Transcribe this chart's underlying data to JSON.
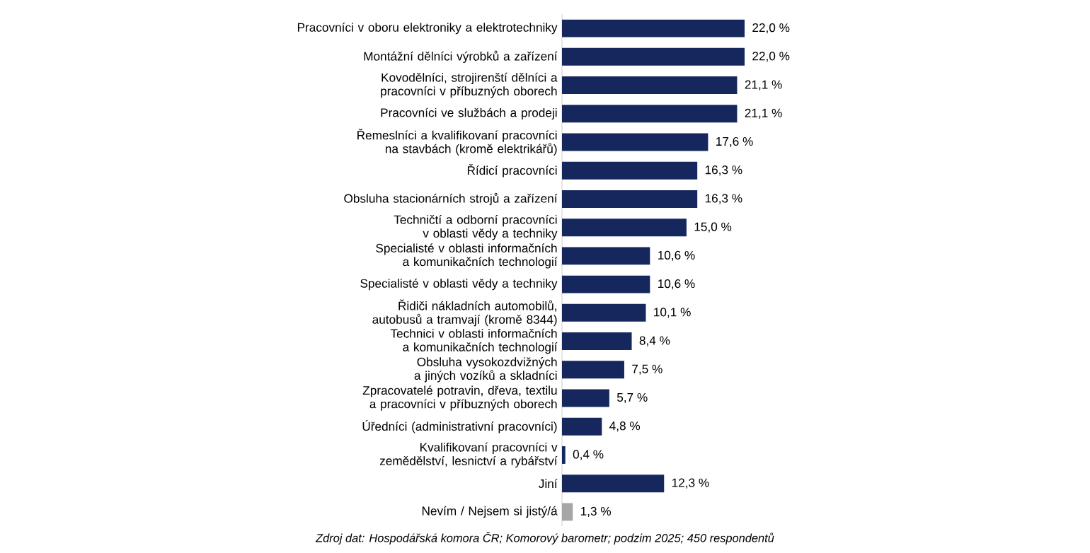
{
  "chart_data": {
    "type": "bar",
    "orientation": "horizontal",
    "categories": [
      "Pracovníci v oboru elektroniky a elektrotechniky",
      "Montážní dělníci výrobků a zařízení",
      "Kovodělníci, strojirenští dělníci a pracovníci v příbuzných oborech",
      "Pracovníci ve službách a prodeji",
      "Řemeslníci a kvalifikovaní pracovníci na stavbách (kromě elektrikářů)",
      "Řídicí pracovníci",
      "Obsluha stacionárních strojů a zařízení",
      "Techničtí a odborní pracovníci v oblasti vědy a techniky",
      "Specialisté v oblasti informačních a komunikačních technologií",
      "Specialisté v oblasti vědy a techniky",
      "Řidiči nákladních automobilů, autobusů a tramvají (kromě 8344)",
      "Technici v oblasti informačních a komunikačních technologií",
      "Obsluha vysokozdvižných a jiných vozíků a skladníci",
      "Zpracovatelé potravin, dřeva, textilu a pracovníci v příbuzných oborech",
      "Úředníci (administrativní pracovníci)",
      "Kvalifikovaní pracovníci v zemědělství, lesnictví a rybářství",
      "Jiní",
      "Nevím / Nejsem si jistý/á"
    ],
    "values": [
      22.0,
      22.0,
      21.1,
      21.1,
      17.6,
      16.3,
      16.3,
      15.0,
      10.6,
      10.6,
      10.1,
      8.4,
      7.5,
      5.7,
      4.8,
      0.4,
      12.3,
      1.3
    ],
    "value_labels": [
      "22,0 %",
      "22,0 %",
      "21,1 %",
      "21,1 %",
      "17,6 %",
      "16,3 %",
      "16,3 %",
      "15,0 %",
      "10,6 %",
      "10,6 %",
      "10,1 %",
      "8,4 %",
      "7,5 %",
      "5,7 %",
      "4,8 %",
      "0,4 %",
      "12,3 %",
      "1,3 %"
    ],
    "colors": [
      "#15275c",
      "#15275c",
      "#15275c",
      "#15275c",
      "#15275c",
      "#15275c",
      "#15275c",
      "#15275c",
      "#15275c",
      "#15275c",
      "#15275c",
      "#15275c",
      "#15275c",
      "#15275c",
      "#15275c",
      "#15275c",
      "#15275c",
      "#a6a6a6"
    ],
    "annotations": [
      "Zdroj dat: Hospodářská komora ČR; Komorový barometr; podzim 2025; 450 respondentů"
    ]
  }
}
